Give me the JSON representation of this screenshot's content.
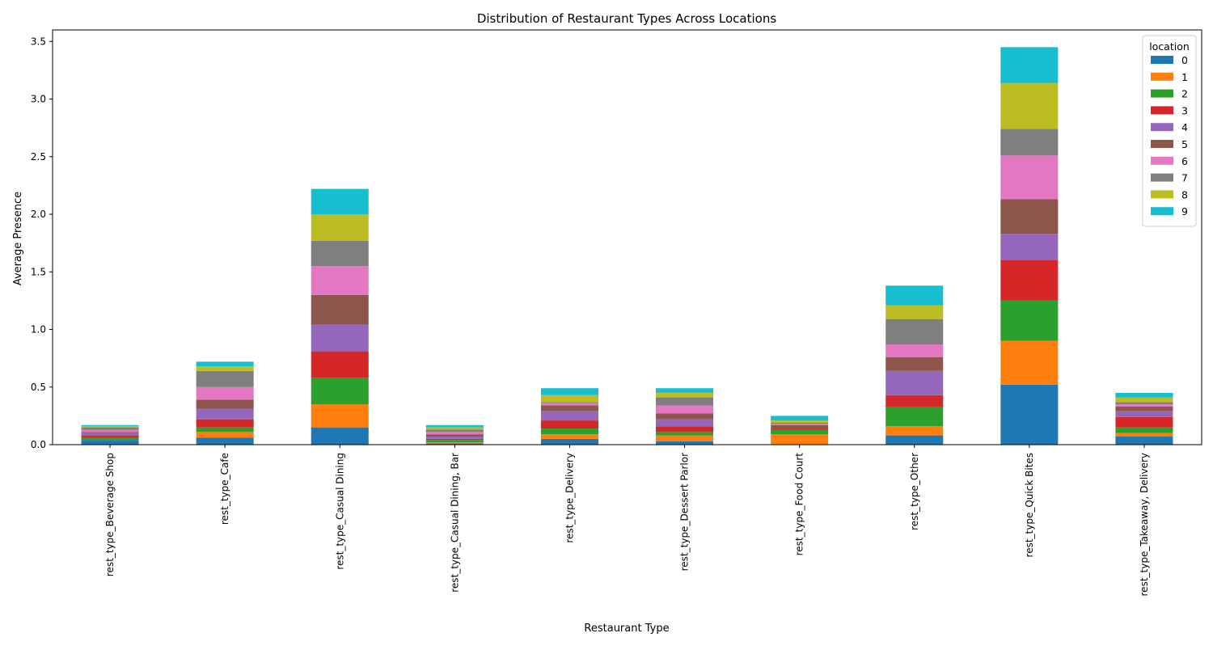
{
  "chart_data": {
    "type": "bar",
    "stacked": true,
    "title": "Distribution of Restaurant Types Across Locations",
    "xlabel": "Restaurant Type",
    "ylabel": "Average Presence",
    "ylim": [
      0,
      3.6
    ],
    "yticks": [
      "0.0",
      "0.5",
      "1.0",
      "1.5",
      "2.0",
      "2.5",
      "3.0",
      "3.5"
    ],
    "grid": false,
    "legend": {
      "title": "location",
      "placement": "top-right"
    },
    "categories": [
      "rest_type_Beverage Shop",
      "rest_type_Cafe",
      "rest_type_Casual Dining",
      "rest_type_Casual Dining, Bar",
      "rest_type_Delivery",
      "rest_type_Dessert Parlor",
      "rest_type_Food Court",
      "rest_type_Other",
      "rest_type_Quick Bites",
      "rest_type_Takeaway, Delivery"
    ],
    "series": [
      {
        "name": "0",
        "color": "#1f77b4",
        "values": [
          0.04,
          0.06,
          0.15,
          0.01,
          0.05,
          0.03,
          0.0,
          0.08,
          0.52,
          0.07
        ]
      },
      {
        "name": "1",
        "color": "#ff7f0e",
        "values": [
          0.0,
          0.05,
          0.2,
          0.01,
          0.04,
          0.05,
          0.09,
          0.08,
          0.38,
          0.03
        ]
      },
      {
        "name": "2",
        "color": "#2ca02c",
        "values": [
          0.02,
          0.04,
          0.23,
          0.02,
          0.05,
          0.03,
          0.04,
          0.17,
          0.35,
          0.05
        ]
      },
      {
        "name": "3",
        "color": "#d62728",
        "values": [
          0.02,
          0.07,
          0.23,
          0.01,
          0.07,
          0.05,
          0.01,
          0.1,
          0.35,
          0.09
        ]
      },
      {
        "name": "4",
        "color": "#9467bd",
        "values": [
          0.02,
          0.09,
          0.23,
          0.02,
          0.08,
          0.06,
          0.0,
          0.21,
          0.23,
          0.05
        ]
      },
      {
        "name": "5",
        "color": "#8c564b",
        "values": [
          0.01,
          0.08,
          0.26,
          0.02,
          0.05,
          0.05,
          0.03,
          0.12,
          0.3,
          0.04
        ]
      },
      {
        "name": "6",
        "color": "#e377c2",
        "values": [
          0.02,
          0.11,
          0.25,
          0.02,
          0.02,
          0.07,
          0.01,
          0.11,
          0.38,
          0.02
        ]
      },
      {
        "name": "7",
        "color": "#7f7f7f",
        "values": [
          0.02,
          0.14,
          0.22,
          0.02,
          0.01,
          0.07,
          0.01,
          0.22,
          0.23,
          0.02
        ]
      },
      {
        "name": "8",
        "color": "#bcbd22",
        "values": [
          0.01,
          0.04,
          0.23,
          0.02,
          0.06,
          0.04,
          0.02,
          0.12,
          0.4,
          0.04
        ]
      },
      {
        "name": "9",
        "color": "#17becf",
        "values": [
          0.01,
          0.04,
          0.22,
          0.02,
          0.06,
          0.04,
          0.04,
          0.17,
          0.31,
          0.04
        ]
      }
    ]
  }
}
